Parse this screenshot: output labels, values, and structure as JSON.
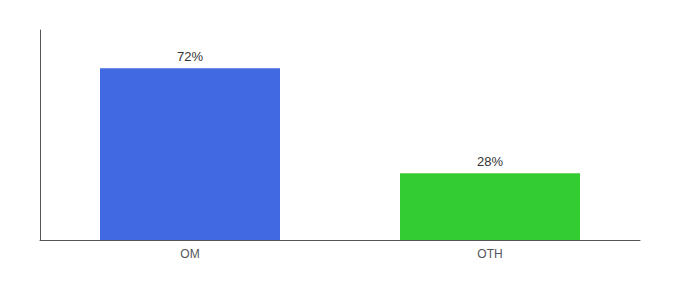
{
  "chart_data": {
    "type": "bar",
    "categories": [
      "OM",
      "OTH"
    ],
    "values": [
      72,
      28
    ],
    "value_labels": [
      "72%",
      "28%"
    ],
    "colors": [
      "#4169e1",
      "#33cc33"
    ],
    "ylim": [
      0,
      88
    ],
    "data_labels": true,
    "tick_labels": "x",
    "grid": false
  }
}
